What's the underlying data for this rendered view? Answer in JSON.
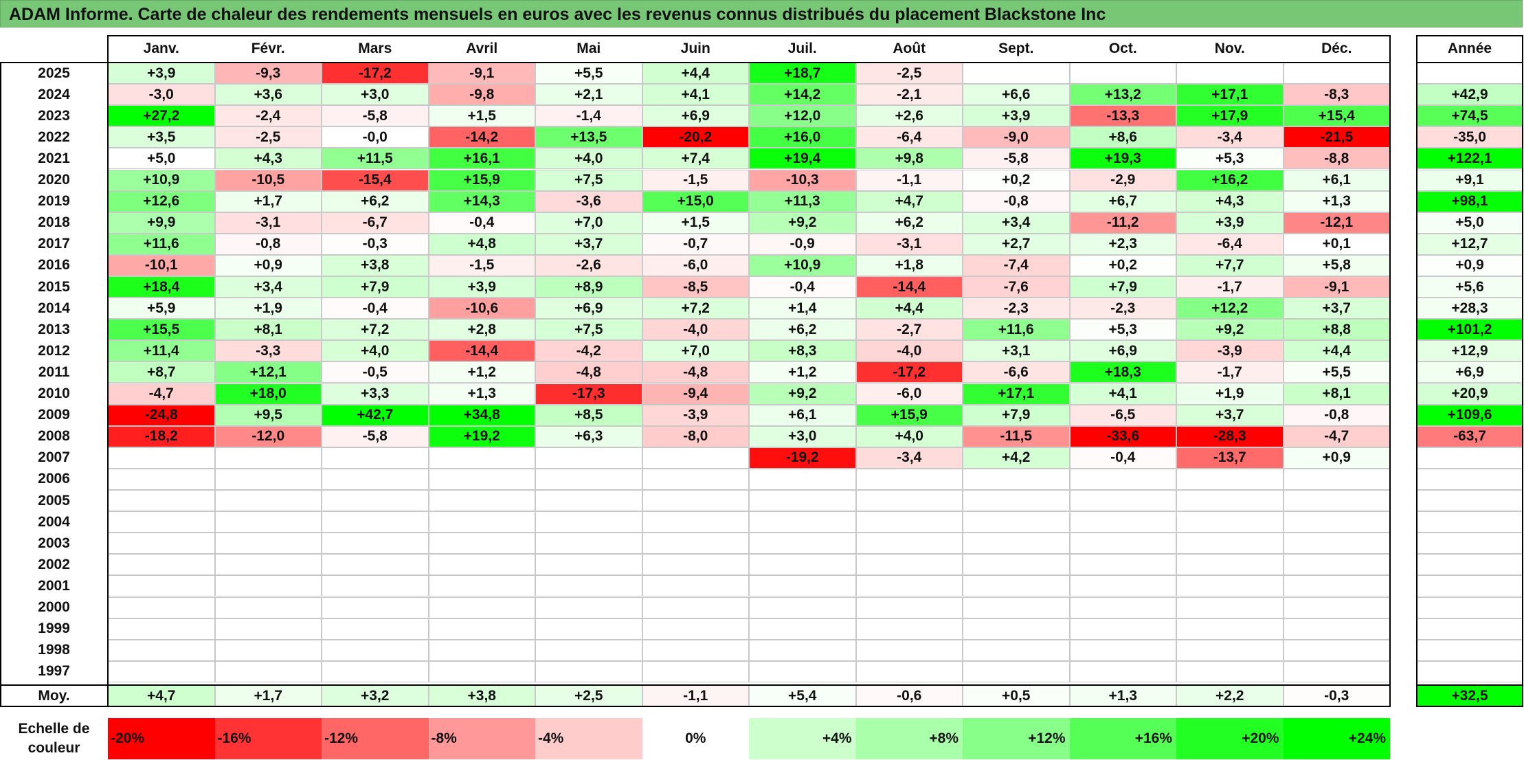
{
  "chart_data": {
    "type": "heatmap",
    "title": "ADAM Informe. Carte de chaleur des rendements mensuels en euros avec les revenus connus distribués du placement Blackstone Inc",
    "months": [
      "Janv.",
      "Févr.",
      "Mars",
      "Avril",
      "Mai",
      "Juin",
      "Juil.",
      "Août",
      "Sept.",
      "Oct.",
      "Nov.",
      "Déc."
    ],
    "annual_header": "Année",
    "rows": [
      {
        "year": "2025",
        "values": [
          3.9,
          -9.3,
          -17.2,
          -9.1,
          5.5,
          4.4,
          18.7,
          -2.5,
          null,
          null,
          null,
          null
        ],
        "annual": null
      },
      {
        "year": "2024",
        "values": [
          -3.0,
          3.6,
          3.0,
          -9.8,
          2.1,
          4.1,
          14.2,
          -2.1,
          6.6,
          13.2,
          17.1,
          -8.3
        ],
        "annual": 42.9
      },
      {
        "year": "2023",
        "values": [
          27.2,
          -2.4,
          -5.8,
          1.5,
          -1.4,
          6.9,
          12.0,
          2.6,
          3.9,
          -13.3,
          17.9,
          15.4
        ],
        "annual": 74.5
      },
      {
        "year": "2022",
        "values": [
          3.5,
          -2.5,
          "-0,0",
          -14.2,
          13.5,
          -20.2,
          16.0,
          -6.4,
          -9.0,
          8.6,
          -3.4,
          -21.5
        ],
        "annual": -35.0
      },
      {
        "year": "2021",
        "values": [
          5.0,
          4.3,
          11.5,
          16.1,
          4.0,
          7.4,
          19.4,
          9.8,
          -5.8,
          19.3,
          5.3,
          -8.8
        ],
        "annual": 122.1
      },
      {
        "year": "2020",
        "values": [
          10.9,
          -10.5,
          -15.4,
          15.9,
          7.5,
          -1.5,
          -10.3,
          -1.1,
          0.2,
          -2.9,
          16.2,
          6.1
        ],
        "annual": 9.1
      },
      {
        "year": "2019",
        "values": [
          12.6,
          1.7,
          6.2,
          14.3,
          -3.6,
          15.0,
          11.3,
          4.7,
          -0.8,
          6.7,
          4.3,
          1.3
        ],
        "annual": 98.1
      },
      {
        "year": "2018",
        "values": [
          9.9,
          -3.1,
          -6.7,
          -0.4,
          7.0,
          1.5,
          9.2,
          6.2,
          3.4,
          -11.2,
          3.9,
          -12.1
        ],
        "annual": 5.0
      },
      {
        "year": "2017",
        "values": [
          11.6,
          -0.8,
          -0.3,
          4.8,
          3.7,
          -0.7,
          -0.9,
          -3.1,
          2.7,
          2.3,
          -6.4,
          0.1
        ],
        "annual": 12.7
      },
      {
        "year": "2016",
        "values": [
          -10.1,
          0.9,
          3.8,
          -1.5,
          -2.6,
          -6.0,
          10.9,
          1.8,
          -7.4,
          0.2,
          7.7,
          5.8
        ],
        "annual": 0.9
      },
      {
        "year": "2015",
        "values": [
          18.4,
          3.4,
          7.9,
          3.9,
          8.9,
          -8.5,
          -0.4,
          -14.4,
          -7.6,
          7.9,
          -1.7,
          -9.1
        ],
        "annual": 5.6
      },
      {
        "year": "2014",
        "values": [
          5.9,
          1.9,
          -0.4,
          -10.6,
          6.9,
          7.2,
          1.4,
          4.4,
          -2.3,
          -2.3,
          12.2,
          3.7
        ],
        "annual": 28.3
      },
      {
        "year": "2013",
        "values": [
          15.5,
          8.1,
          7.2,
          2.8,
          7.5,
          -4.0,
          6.2,
          -2.7,
          11.6,
          5.3,
          9.2,
          8.8
        ],
        "annual": 101.2
      },
      {
        "year": "2012",
        "values": [
          11.4,
          -3.3,
          4.0,
          -14.4,
          -4.2,
          7.0,
          8.3,
          -4.0,
          3.1,
          6.9,
          -3.9,
          4.4
        ],
        "annual": 12.9
      },
      {
        "year": "2011",
        "values": [
          8.7,
          12.1,
          -0.5,
          1.2,
          -4.8,
          -4.8,
          1.2,
          -17.2,
          -6.6,
          18.3,
          -1.7,
          5.5
        ],
        "annual": 6.9
      },
      {
        "year": "2010",
        "values": [
          -4.7,
          18.0,
          3.3,
          1.3,
          -17.3,
          -9.4,
          9.2,
          -6.0,
          17.1,
          4.1,
          1.9,
          8.1
        ],
        "annual": 20.9
      },
      {
        "year": "2009",
        "values": [
          -24.8,
          9.5,
          42.7,
          34.8,
          8.5,
          -3.9,
          6.1,
          15.9,
          7.9,
          -6.5,
          3.7,
          -0.8
        ],
        "annual": 109.6
      },
      {
        "year": "2008",
        "values": [
          -18.2,
          -12.0,
          -5.8,
          19.2,
          6.3,
          -8.0,
          3.0,
          4.0,
          -11.5,
          -33.6,
          -28.3,
          -4.7
        ],
        "annual": -63.7
      },
      {
        "year": "2007",
        "values": [
          null,
          null,
          null,
          null,
          null,
          null,
          -19.2,
          -3.4,
          4.2,
          -0.4,
          -13.7,
          0.9
        ],
        "annual": null
      },
      {
        "year": "2006",
        "values": [
          null,
          null,
          null,
          null,
          null,
          null,
          null,
          null,
          null,
          null,
          null,
          null
        ],
        "annual": null
      },
      {
        "year": "2005",
        "values": [
          null,
          null,
          null,
          null,
          null,
          null,
          null,
          null,
          null,
          null,
          null,
          null
        ],
        "annual": null
      },
      {
        "year": "2004",
        "values": [
          null,
          null,
          null,
          null,
          null,
          null,
          null,
          null,
          null,
          null,
          null,
          null
        ],
        "annual": null
      },
      {
        "year": "2003",
        "values": [
          null,
          null,
          null,
          null,
          null,
          null,
          null,
          null,
          null,
          null,
          null,
          null
        ],
        "annual": null
      },
      {
        "year": "2002",
        "values": [
          null,
          null,
          null,
          null,
          null,
          null,
          null,
          null,
          null,
          null,
          null,
          null
        ],
        "annual": null
      },
      {
        "year": "2001",
        "values": [
          null,
          null,
          null,
          null,
          null,
          null,
          null,
          null,
          null,
          null,
          null,
          null
        ],
        "annual": null
      },
      {
        "year": "2000",
        "values": [
          null,
          null,
          null,
          null,
          null,
          null,
          null,
          null,
          null,
          null,
          null,
          null
        ],
        "annual": null
      },
      {
        "year": "1999",
        "values": [
          null,
          null,
          null,
          null,
          null,
          null,
          null,
          null,
          null,
          null,
          null,
          null
        ],
        "annual": null
      },
      {
        "year": "1998",
        "values": [
          null,
          null,
          null,
          null,
          null,
          null,
          null,
          null,
          null,
          null,
          null,
          null
        ],
        "annual": null
      },
      {
        "year": "1997",
        "values": [
          null,
          null,
          null,
          null,
          null,
          null,
          null,
          null,
          null,
          null,
          null,
          null
        ],
        "annual": null
      }
    ],
    "average": {
      "label": "Moy.",
      "values": [
        4.7,
        1.7,
        3.2,
        3.8,
        2.5,
        -1.1,
        5.4,
        -0.6,
        0.5,
        1.3,
        2.2,
        -0.3
      ],
      "annual": 32.5
    },
    "color_scale": {
      "label_line1": "Echelle de",
      "label_line2": "couleur",
      "steps": [
        {
          "label": "-20%",
          "value": -20,
          "color": "#ff0000"
        },
        {
          "label": "-16%",
          "value": -16,
          "color": "#ff3333"
        },
        {
          "label": "-12%",
          "value": -12,
          "color": "#ff6666"
        },
        {
          "label": "-8%",
          "value": -8,
          "color": "#ff9999"
        },
        {
          "label": "-4%",
          "value": -4,
          "color": "#ffcccc"
        },
        {
          "label": "0%",
          "value": 0,
          "color": "#ffffff"
        },
        {
          "label": "+4%",
          "value": 4,
          "color": "#ccffcc"
        },
        {
          "label": "+8%",
          "value": 8,
          "color": "#aaffaa"
        },
        {
          "label": "+12%",
          "value": 12,
          "color": "#88ff88"
        },
        {
          "label": "+16%",
          "value": 16,
          "color": "#55ff55"
        },
        {
          "label": "+20%",
          "value": 20,
          "color": "#22ff22"
        },
        {
          "label": "+24%",
          "value": 24,
          "color": "#00ff00"
        }
      ]
    }
  }
}
